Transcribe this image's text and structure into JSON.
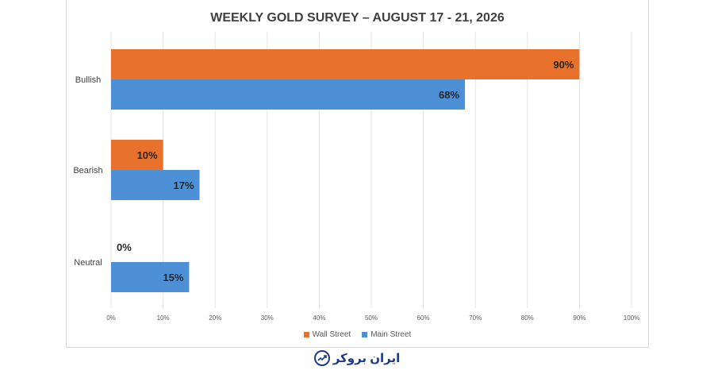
{
  "chart_data": {
    "type": "bar",
    "orientation": "horizontal",
    "title": "WEEKLY GOLD SURVEY – AUGUST 17 - 21, 2026",
    "categories": [
      "Bullish",
      "Bearish",
      "Neutral"
    ],
    "series": [
      {
        "name": "Wall Street",
        "color": "#e8722c",
        "values": [
          90,
          10,
          0
        ],
        "labels": [
          "90%",
          "10%",
          "0%"
        ]
      },
      {
        "name": "Main Street",
        "color": "#4d90d6",
        "values": [
          68,
          17,
          15
        ],
        "labels": [
          "68%",
          "17%",
          "15%"
        ]
      }
    ],
    "xlim": [
      0,
      100
    ],
    "x_ticks": [
      "0%",
      "10%",
      "20%",
      "30%",
      "40%",
      "50%",
      "60%",
      "70%",
      "80%",
      "90%",
      "100%"
    ],
    "grid": true,
    "legend_position": "bottom"
  },
  "watermark": {
    "text": "ایران بروکر",
    "icon": "chart-trend-icon",
    "color": "#1d3a8a"
  }
}
